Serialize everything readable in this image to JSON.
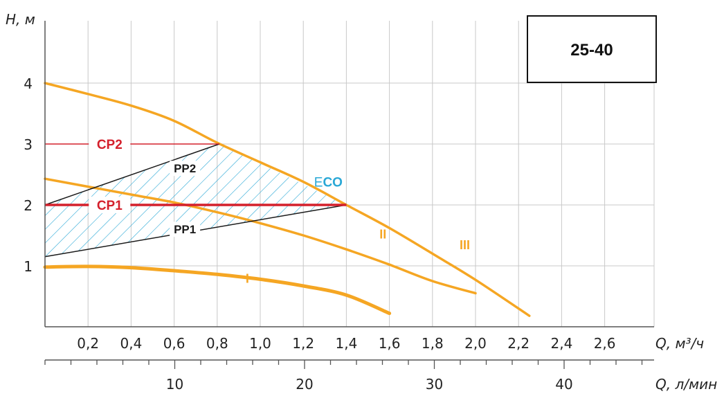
{
  "chart_data": {
    "type": "line",
    "title": "25-40",
    "ylabel": "H, м",
    "xlabel": "Q, м³/ч",
    "x2label": "Q, л/мин",
    "xlim": [
      0,
      2.8
    ],
    "ylim": [
      0,
      4.5
    ],
    "x_ticks": [
      "0,2",
      "0,4",
      "0,6",
      "0,8",
      "1,0",
      "1,2",
      "1,4",
      "1,6",
      "1,8",
      "2,0",
      "2,2",
      "2,4",
      "2,6"
    ],
    "x_tick_values": [
      0.2,
      0.4,
      0.6,
      0.8,
      1.0,
      1.2,
      1.4,
      1.6,
      1.8,
      2.0,
      2.2,
      2.4,
      2.6
    ],
    "y_ticks": [
      "1",
      "2",
      "3",
      "4"
    ],
    "y_tick_values": [
      1,
      2,
      3,
      4
    ],
    "x2_ticks": [
      "10",
      "20",
      "30",
      "40"
    ],
    "x2_tick_values": [
      10,
      20,
      30,
      40
    ],
    "grid": true,
    "colors": {
      "curve": "#f5a623",
      "cp": "#d4202c",
      "pp": "#1a1a1a",
      "eco": "#2aa8d6",
      "grid": "#c8c8c8",
      "axis": "#555555"
    },
    "series": [
      {
        "name": "I",
        "points": [
          [
            0,
            0.98
          ],
          [
            0.2,
            0.99
          ],
          [
            0.4,
            0.97
          ],
          [
            0.6,
            0.92
          ],
          [
            0.8,
            0.86
          ],
          [
            1.0,
            0.78
          ],
          [
            1.2,
            0.67
          ],
          [
            1.4,
            0.52
          ],
          [
            1.6,
            0.22
          ]
        ]
      },
      {
        "name": "II",
        "points": [
          [
            0,
            2.43
          ],
          [
            0.2,
            2.3
          ],
          [
            0.4,
            2.17
          ],
          [
            0.6,
            2.04
          ],
          [
            0.8,
            1.88
          ],
          [
            1.0,
            1.7
          ],
          [
            1.2,
            1.5
          ],
          [
            1.4,
            1.27
          ],
          [
            1.6,
            1.02
          ],
          [
            1.8,
            0.75
          ],
          [
            2.0,
            0.55
          ]
        ]
      },
      {
        "name": "III",
        "points": [
          [
            0,
            4.0
          ],
          [
            0.2,
            3.82
          ],
          [
            0.4,
            3.63
          ],
          [
            0.6,
            3.38
          ],
          [
            0.8,
            3.02
          ],
          [
            1.0,
            2.7
          ],
          [
            1.2,
            2.38
          ],
          [
            1.4,
            2.0
          ],
          [
            1.6,
            1.62
          ],
          [
            1.8,
            1.2
          ],
          [
            2.0,
            0.77
          ],
          [
            2.25,
            0.18
          ]
        ]
      }
    ],
    "control_lines": [
      {
        "name": "CP2",
        "points": [
          [
            0,
            3.0
          ],
          [
            0.81,
            3.0
          ]
        ]
      },
      {
        "name": "CP1",
        "points": [
          [
            0,
            2.0
          ],
          [
            1.4,
            2.0
          ]
        ]
      }
    ],
    "pp_lines": [
      {
        "name": "PP2",
        "points": [
          [
            0,
            2.0
          ],
          [
            0.81,
            3.0
          ]
        ]
      },
      {
        "name": "PP1",
        "points": [
          [
            0,
            1.15
          ],
          [
            1.4,
            2.0
          ]
        ]
      }
    ],
    "eco_region": {
      "label_prefix": "E",
      "label_bold": "CO",
      "points": [
        [
          0,
          1.15
        ],
        [
          1.4,
          2.0
        ],
        [
          0.81,
          3.0
        ],
        [
          0,
          2.0
        ]
      ]
    }
  }
}
